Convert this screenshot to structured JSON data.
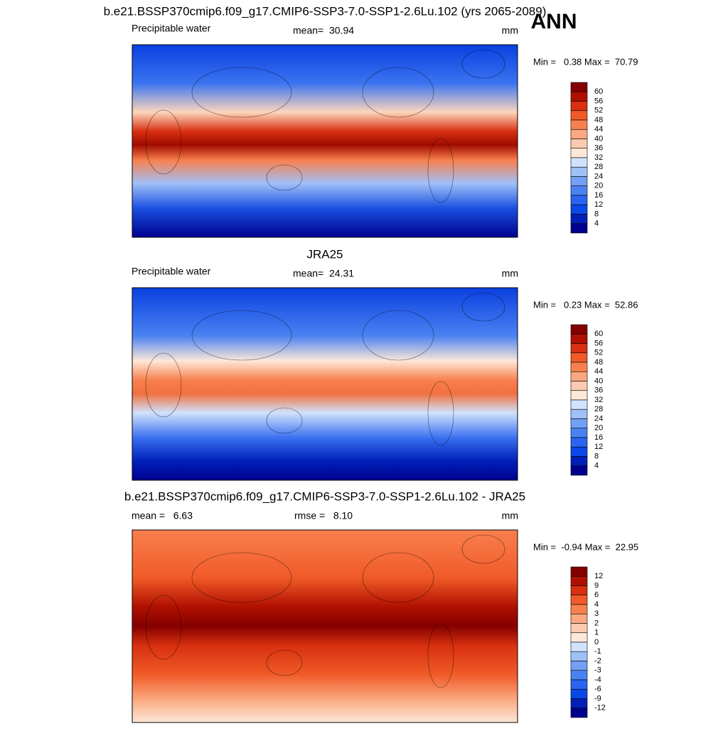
{
  "header": {
    "corner_label": "ANN"
  },
  "panels": [
    {
      "title": "b.e21.BSSP370cmip6.f09_g17.CMIP6-SSP3-7.0-SSP1-2.6Lu.102 (yrs 2065-2089)",
      "left_label": "Precipitable water",
      "center_label": "mean=  30.94",
      "units": "mm",
      "range_label": "Min =   0.38 Max =  70.79",
      "colorbar": {
        "labels": [
          60,
          56,
          52,
          48,
          44,
          40,
          36,
          32,
          28,
          24,
          20,
          16,
          12,
          8,
          4
        ],
        "colors": [
          "#840000",
          "#b01000",
          "#d83010",
          "#f05a28",
          "#f8804e",
          "#fba880",
          "#fccab0",
          "#fde8d8",
          "#d0e2fc",
          "#a0c0f8",
          "#72a0f4",
          "#4a82f2",
          "#2a64f0",
          "#0a48e8",
          "#0020b8",
          "#00008f"
        ]
      }
    },
    {
      "title": "JRA25",
      "left_label": "Precipitable water",
      "center_label": "mean=  24.31",
      "units": "mm",
      "range_label": "Min =   0.23 Max =  52.86",
      "colorbar": {
        "labels": [
          60,
          56,
          52,
          48,
          44,
          40,
          36,
          32,
          28,
          24,
          20,
          16,
          12,
          8,
          4
        ],
        "colors": [
          "#840000",
          "#b01000",
          "#d83010",
          "#f05a28",
          "#f8804e",
          "#fba880",
          "#fccab0",
          "#fde8d8",
          "#d0e2fc",
          "#a0c0f8",
          "#72a0f4",
          "#4a82f2",
          "#2a64f0",
          "#0a48e8",
          "#0020b8",
          "#00008f"
        ]
      }
    },
    {
      "title": "b.e21.BSSP370cmip6.f09_g17.CMIP6-SSP3-7.0-SSP1-2.6Lu.102 - JRA25",
      "left_label": "mean =   6.63",
      "center_label": "rmse =   8.10",
      "units": "mm",
      "range_label": "Min =  -0.94 Max =  22.95",
      "colorbar": {
        "labels": [
          12,
          9,
          6,
          4,
          3,
          2,
          1,
          0,
          -1,
          -2,
          -3,
          -4,
          -6,
          -9,
          -12
        ],
        "colors": [
          "#840000",
          "#b01000",
          "#d83010",
          "#f05a28",
          "#f8804e",
          "#fba880",
          "#fccab0",
          "#fde8d8",
          "#d0e2fc",
          "#a0c0f8",
          "#72a0f4",
          "#4a82f2",
          "#2a64f0",
          "#0a48e8",
          "#0020b8",
          "#00008f"
        ]
      }
    }
  ]
}
